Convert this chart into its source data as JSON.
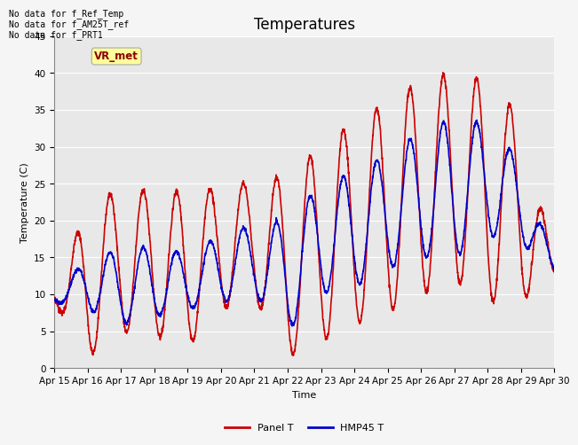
{
  "title": "Temperatures",
  "ylabel": "Temperature (C)",
  "xlabel": "Time",
  "ylim": [
    0,
    45
  ],
  "yticks": [
    0,
    5,
    10,
    15,
    20,
    25,
    30,
    35,
    40,
    45
  ],
  "xtick_labels": [
    "Apr 15",
    "Apr 16",
    "Apr 17",
    "Apr 18",
    "Apr 19",
    "Apr 20",
    "Apr 21",
    "Apr 22",
    "Apr 23",
    "Apr 24",
    "Apr 25",
    "Apr 26",
    "Apr 27",
    "Apr 28",
    "Apr 29",
    "Apr 30"
  ],
  "annotations": [
    "No data for f_Ref_Temp",
    "No data for f_AM25T_ref",
    "No data for f_PRT1"
  ],
  "vr_met_label": "VR_met",
  "legend_entries": [
    "Panel T",
    "HMP45 T"
  ],
  "legend_colors": [
    "#cc0000",
    "#0000cc"
  ],
  "bg_color": "#e8e8e8",
  "panel_t_color": "#cc0000",
  "hmp45_t_color": "#0000cc",
  "panel_t_lw": 1.2,
  "hmp45_t_lw": 1.2,
  "title_fontsize": 12,
  "axis_fontsize": 8,
  "tick_fontsize": 7.5,
  "annotation_fontsize": 7,
  "legend_fontsize": 8
}
